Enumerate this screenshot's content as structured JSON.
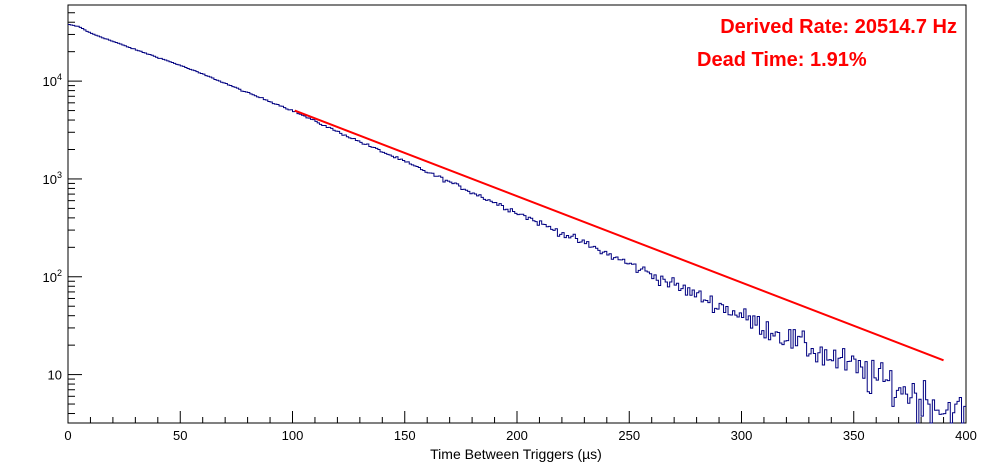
{
  "chart_data": {
    "type": "line",
    "xlabel": "Time Between Triggers (µs)",
    "ylabel": "",
    "x_log": false,
    "y_log": true,
    "xlim": [
      0,
      400
    ],
    "ylim": [
      3.2,
      60000
    ],
    "grid": false,
    "legend": "none",
    "x_ticks": [
      0,
      50,
      100,
      150,
      200,
      250,
      300,
      350,
      400
    ],
    "y_ticks": [
      {
        "value": 10,
        "base": "10",
        "exp": ""
      },
      {
        "value": 100,
        "base": "10",
        "exp": "2"
      },
      {
        "value": 1000,
        "base": "10",
        "exp": "3"
      },
      {
        "value": 10000,
        "base": "10",
        "exp": "4"
      }
    ],
    "annotations": [
      {
        "text": "Derived Rate: 20514.7 Hz",
        "color": "#ff0000"
      },
      {
        "text": "Dead Time: 1.91%",
        "color": "#ff0000"
      }
    ],
    "series": [
      {
        "kind": "histogram",
        "color": "#000080",
        "bin_width": 1,
        "x": [
          0,
          5,
          10,
          20,
          30,
          40,
          50,
          60,
          70,
          80,
          90,
          100,
          110,
          120,
          130,
          140,
          150,
          160,
          170,
          180,
          190,
          200,
          210,
          220,
          230,
          240,
          250,
          260,
          270,
          280,
          290,
          300,
          310,
          320,
          330,
          340,
          350,
          360,
          370,
          380,
          390,
          400
        ],
        "values": [
          38000,
          36000,
          31000,
          25500,
          21000,
          17500,
          14500,
          11800,
          9500,
          7600,
          6200,
          5000,
          3900,
          3050,
          2400,
          1900,
          1500,
          1180,
          930,
          730,
          575,
          455,
          355,
          280,
          220,
          172,
          135,
          106,
          83,
          65,
          51,
          40,
          31,
          24.5,
          19,
          15,
          12,
          9.4,
          7.4,
          5.8,
          4.6,
          3.6
        ]
      },
      {
        "kind": "fit",
        "color": "#ff0000",
        "x": [
          101,
          390
        ],
        "values": [
          5000,
          14
        ]
      }
    ]
  }
}
